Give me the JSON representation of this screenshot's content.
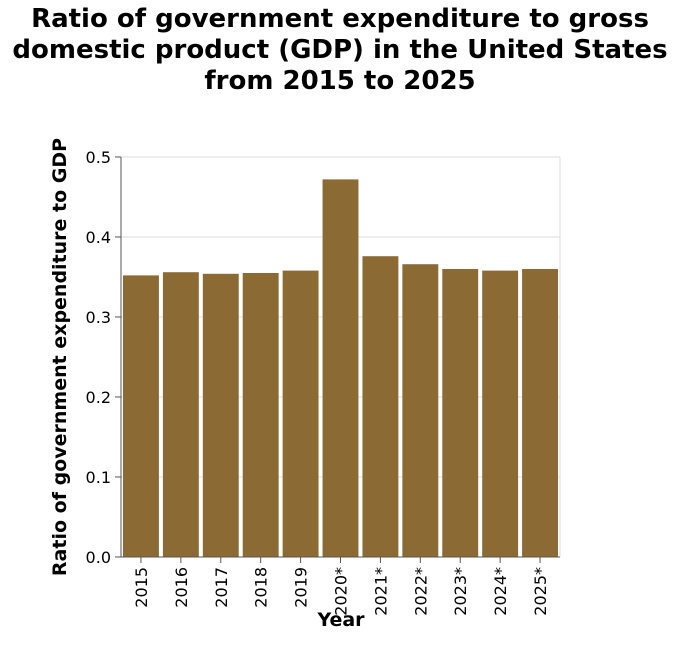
{
  "chart_data": {
    "type": "bar",
    "title_lines": [
      "Ratio of government expenditure to gross",
      "domestic product (GDP) in the United States",
      "from 2015 to 2025"
    ],
    "xlabel": "Year",
    "ylabel": "Ratio of government expenditure to GDP",
    "categories": [
      "2015",
      "2016",
      "2017",
      "2018",
      "2019",
      "2020*",
      "2021*",
      "2022*",
      "2023*",
      "2024*",
      "2025*"
    ],
    "values": [
      0.352,
      0.356,
      0.354,
      0.355,
      0.358,
      0.472,
      0.376,
      0.366,
      0.36,
      0.358,
      0.36
    ],
    "ylim": [
      0,
      0.5
    ],
    "yticks": [
      "0.0",
      "0.1",
      "0.2",
      "0.3",
      "0.4",
      "0.5"
    ],
    "grid": true,
    "bar_color": "#8b6b33",
    "grid_color": "#dddddd"
  }
}
